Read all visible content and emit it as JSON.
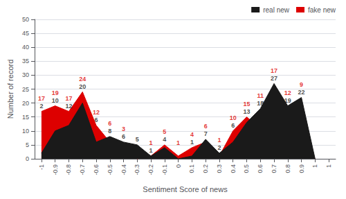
{
  "chart_data": {
    "type": "area",
    "xlabel": "Sentiment Score of news",
    "ylabel": "Number of record",
    "x": [
      -1,
      -0.9,
      -0.8,
      -0.7,
      -0.6,
      -0.5,
      -0.4,
      -0.3,
      -0.2,
      -0.1,
      0,
      0.1,
      0.2,
      0.3,
      0.4,
      0.5,
      0.6,
      0.7,
      0.8,
      0.9,
      1
    ],
    "series": [
      {
        "name": "real new",
        "color": "#1a1a1a",
        "values": [
          2,
          10,
          12,
          20,
          6,
          8,
          6,
          5,
          1,
          4,
          0,
          1,
          7,
          2,
          6,
          13,
          18,
          27,
          19,
          22,
          0
        ]
      },
      {
        "name": "fake new",
        "color": "#dd0000",
        "values": [
          17,
          19,
          17,
          24,
          12,
          6,
          3,
          0,
          1,
          5,
          1,
          4,
          6,
          1,
          10,
          15,
          11,
          17,
          12,
          9,
          0
        ]
      }
    ],
    "xlim": [
      -1.05,
      1.15
    ],
    "xticks": [
      -1,
      -0.9,
      -0.8,
      -0.7,
      -0.6,
      -0.5,
      -0.4,
      -0.3,
      -0.2,
      -0.1,
      0,
      0.1,
      0.2,
      0.3,
      0.4,
      0.5,
      0.6,
      0.7,
      0.8,
      0.9,
      1,
      {
        "value": 1.1,
        "label": "1"
      }
    ],
    "ylim": [
      0,
      50
    ],
    "yticks": [
      0,
      5,
      10,
      15,
      20,
      25,
      30,
      35,
      40,
      45,
      50
    ],
    "grid": true,
    "legend": "upper right",
    "data_labels": true
  }
}
